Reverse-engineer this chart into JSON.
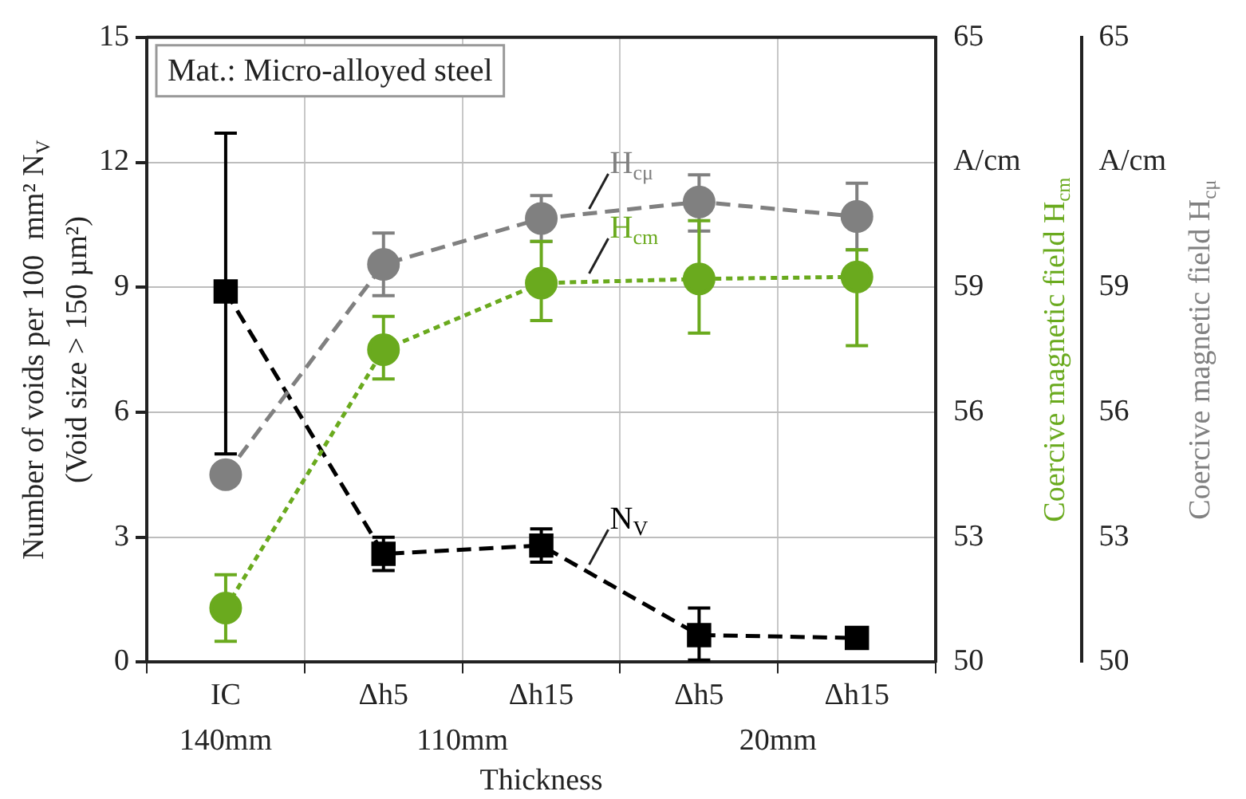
{
  "chart_data": {
    "type": "line",
    "categories": [
      "IC",
      "Δh5",
      "Δh15",
      "Δh5",
      "Δh15"
    ],
    "xlabel": "Thickness",
    "ylabel": "Number of voids per 100  mm² N$_{V}$\n(Void size > 150 µm²)",
    "y2label": "Coercive magnetic field H$_{cm}$",
    "y3label": "Coercive magnetic field H$_{cμ}$",
    "ylim": [
      0,
      15
    ],
    "yticks": [
      0,
      3,
      6,
      9,
      12,
      15
    ],
    "y2lim": [
      50,
      65
    ],
    "y2ticks": [
      50,
      53,
      56,
      59,
      {
        "value": 62,
        "label": "A/cm"
      },
      65
    ],
    "y3lim": [
      50,
      65
    ],
    "y3ticks": [
      50,
      53,
      56,
      59,
      {
        "value": 62,
        "label": "A/cm"
      },
      65
    ],
    "grid": true,
    "legend": false,
    "series": [
      {
        "name": "H$_{cμ}$",
        "color": "#808080",
        "axis": "y3",
        "marker": "circle",
        "line_style": "dashed",
        "values": [
          54.5,
          59.55,
          60.65,
          61.05,
          60.7
        ],
        "errors": [
          null,
          [
            58.8,
            60.3
          ],
          [
            60.1,
            61.2
          ],
          [
            60.35,
            61.7
          ],
          [
            59.9,
            61.5
          ]
        ]
      },
      {
        "name": "H$_{cm}$",
        "color": "#6aaa1e",
        "axis": "y2",
        "marker": "circle",
        "line_style": "dotted",
        "values": [
          51.3,
          57.5,
          59.1,
          59.2,
          59.25
        ],
        "errors": [
          [
            50.5,
            52.1
          ],
          [
            56.8,
            58.3
          ],
          [
            58.2,
            60.1
          ],
          [
            57.9,
            60.6
          ],
          [
            57.6,
            59.9
          ]
        ]
      },
      {
        "name": "N$_{V}$",
        "color": "#000000",
        "axis": "y",
        "marker": "square",
        "line_style": "dashed",
        "values": [
          8.9,
          2.6,
          2.8,
          0.65,
          0.58
        ],
        "errors": [
          [
            5.0,
            12.7
          ],
          [
            2.2,
            3.0
          ],
          [
            2.4,
            3.2
          ],
          [
            0.05,
            1.3
          ],
          null
        ]
      }
    ],
    "annotations": [
      "Mat.: Micro-alloyed steel",
      "140mm",
      "110mm",
      "20mm"
    ]
  }
}
